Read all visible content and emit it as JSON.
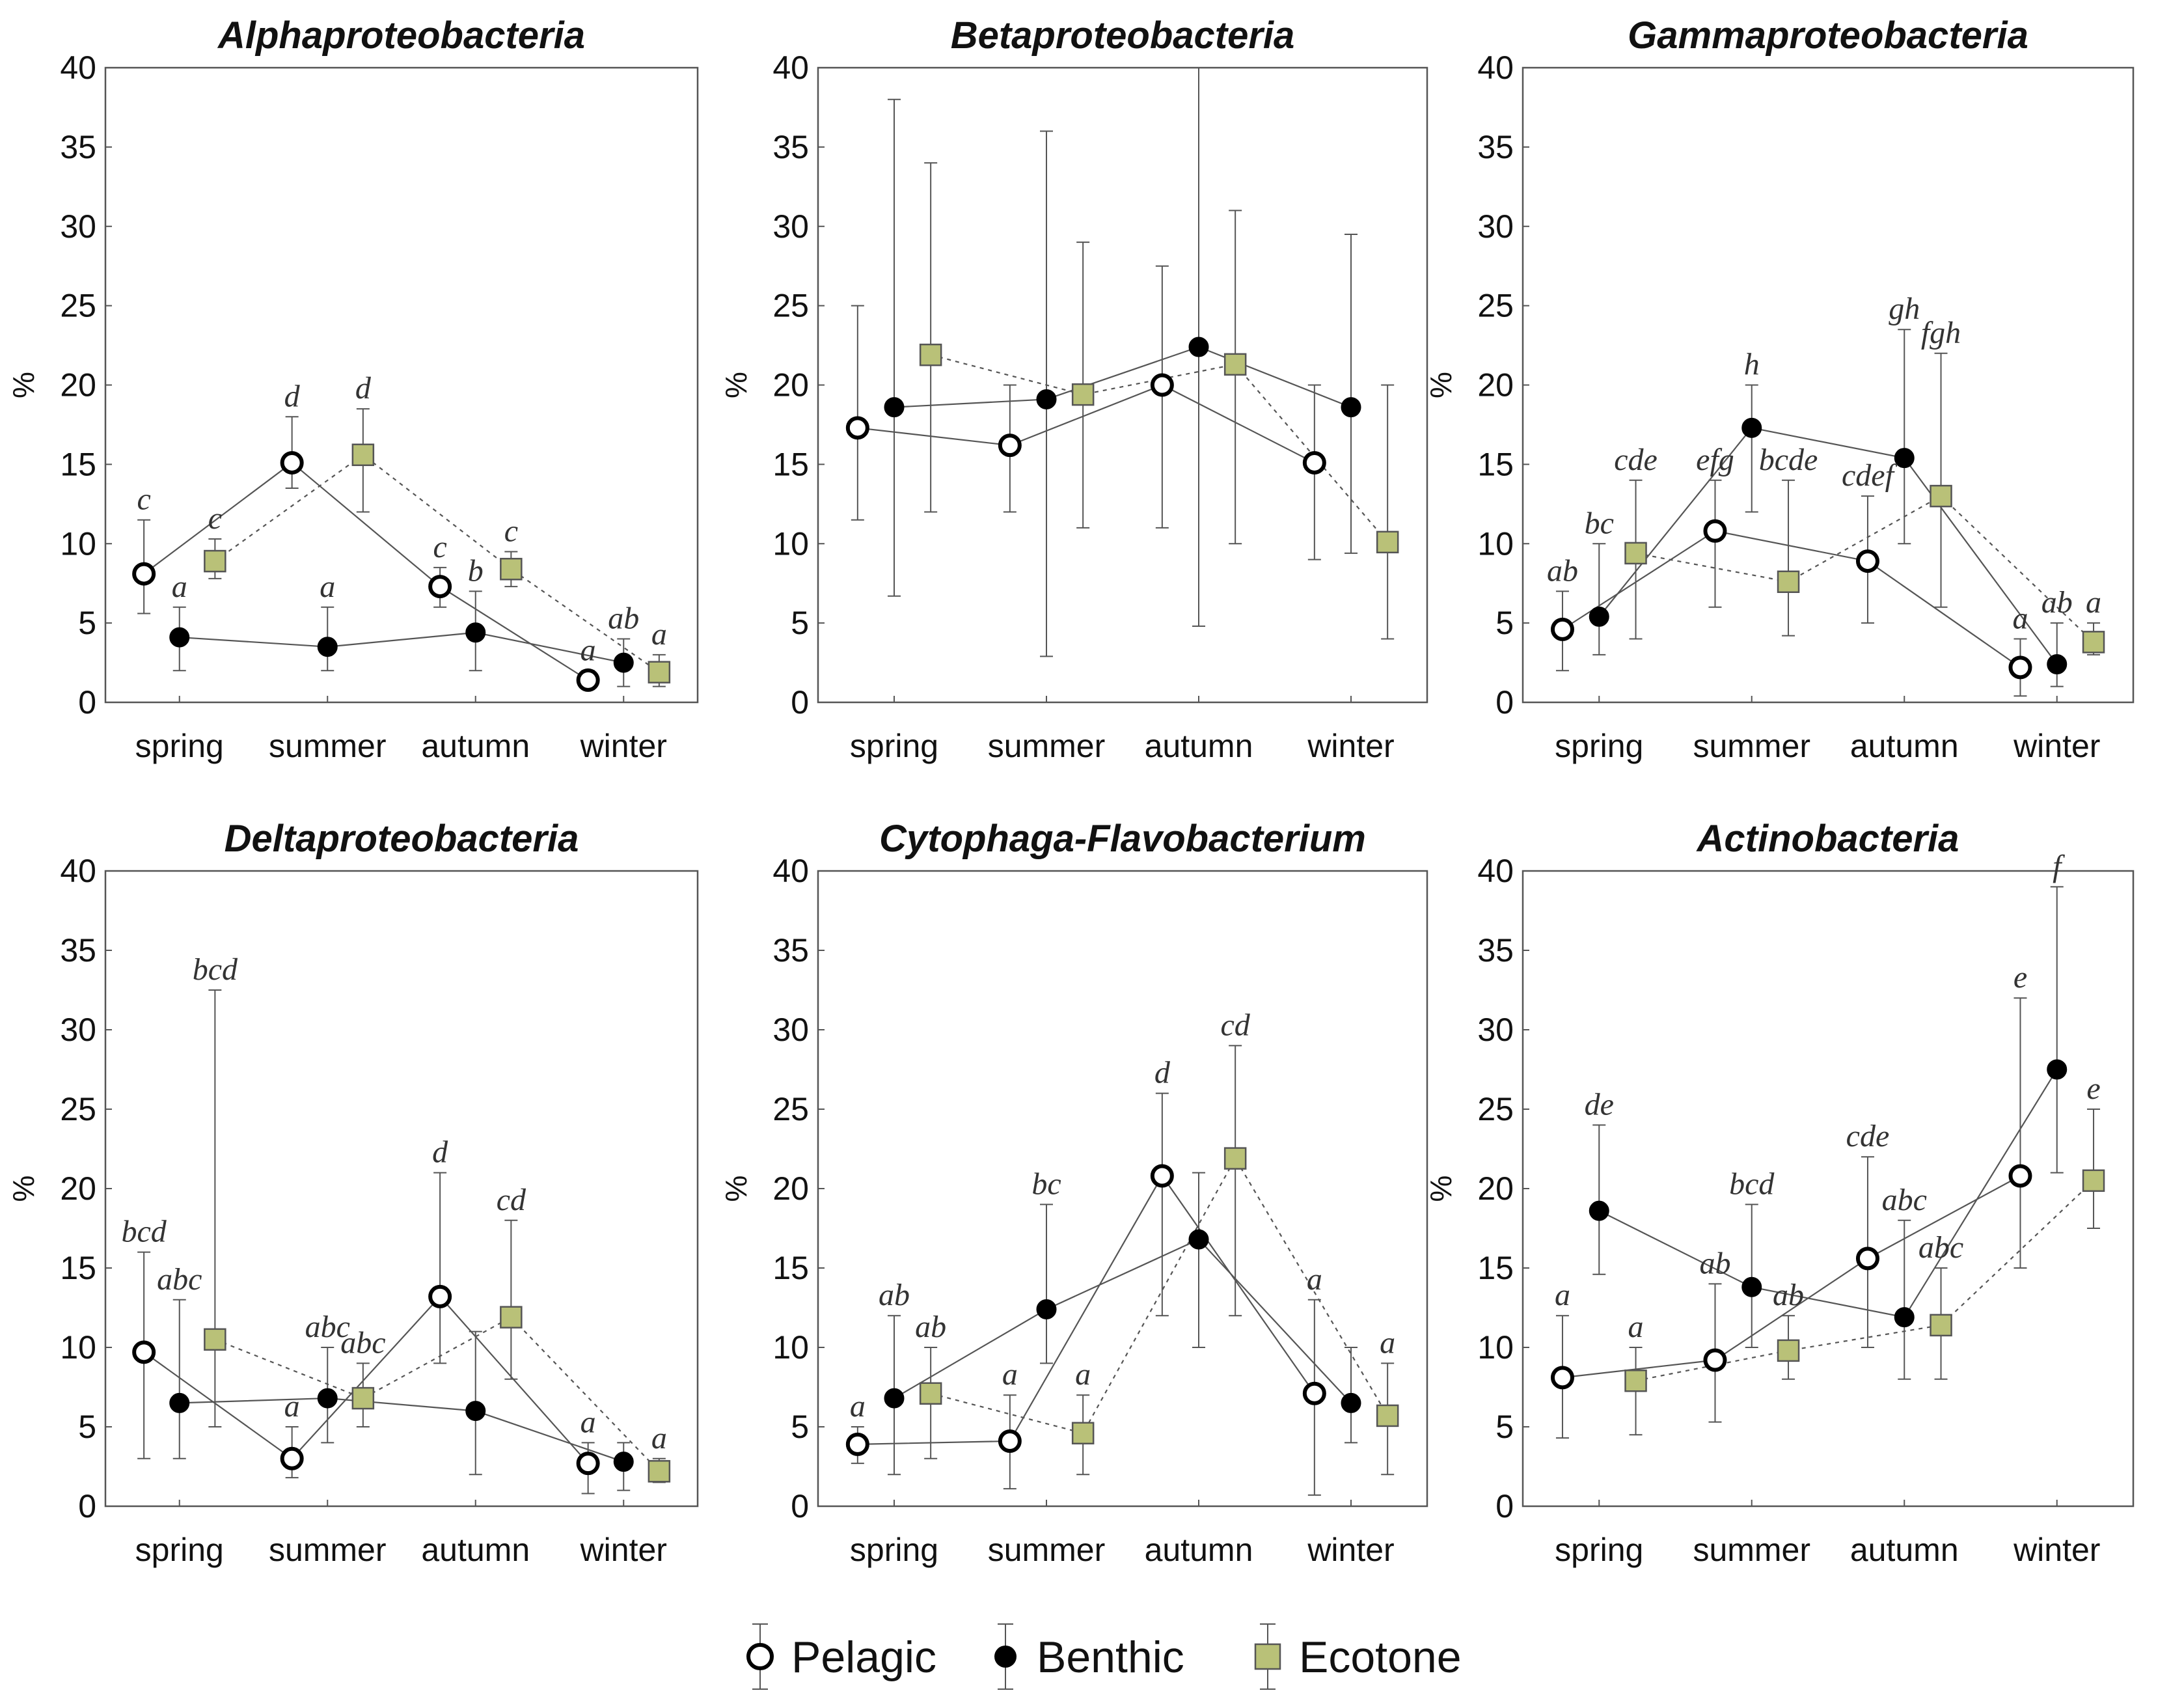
{
  "colors": {
    "pelagic_fill": "#ffffff",
    "benthic_fill": "#000000",
    "ecotone_fill": "#b9c178",
    "line": "#555555",
    "frame": "#555555"
  },
  "legend": [
    {
      "name": "Pelagic",
      "marker": "open-circle"
    },
    {
      "name": "Benthic",
      "marker": "filled-circle"
    },
    {
      "name": "Ecotone",
      "marker": "square"
    }
  ],
  "chart_data": [
    {
      "type": "line",
      "title": "Alphaproteobacteria",
      "ylabel": "%",
      "ylim": [
        0,
        40
      ],
      "yticks": [
        "0",
        "5",
        "10",
        "15",
        "20",
        "25",
        "30",
        "35",
        "40"
      ],
      "categories": [
        "spring",
        "summer",
        "autumn",
        "winter"
      ],
      "series": [
        {
          "name": "Pelagic",
          "values": [
            8.1,
            15.1,
            7.3,
            1.4
          ],
          "err_low": [
            5.6,
            13.5,
            6.0,
            1.0
          ],
          "err_high": [
            11.5,
            18.0,
            8.5,
            2.0
          ],
          "sig": [
            "c",
            "d",
            "c",
            "a"
          ]
        },
        {
          "name": "Benthic",
          "values": [
            4.1,
            3.5,
            4.4,
            2.5
          ],
          "err_low": [
            2.0,
            2.0,
            2.0,
            1.0
          ],
          "err_high": [
            6.0,
            6.0,
            7.0,
            4.0
          ],
          "sig": [
            "a",
            "a",
            "b",
            "ab"
          ]
        },
        {
          "name": "Ecotone",
          "values": [
            8.9,
            15.6,
            8.4,
            1.9
          ],
          "err_low": [
            7.8,
            12.0,
            7.3,
            1.0
          ],
          "err_high": [
            10.3,
            18.5,
            9.5,
            3.0
          ],
          "sig": [
            "c",
            "d",
            "c",
            "a"
          ]
        }
      ]
    },
    {
      "type": "line",
      "title": "Betaproteobacteria",
      "ylabel": "%",
      "ylim": [
        0,
        40
      ],
      "yticks": [
        "0",
        "5",
        "10",
        "15",
        "20",
        "25",
        "30",
        "35",
        "40"
      ],
      "categories": [
        "spring",
        "summer",
        "autumn",
        "winter"
      ],
      "series": [
        {
          "name": "Pelagic",
          "values": [
            17.3,
            16.2,
            20.0,
            15.1
          ],
          "err_low": [
            11.5,
            12.0,
            11.0,
            9.0
          ],
          "err_high": [
            25.0,
            20.0,
            27.5,
            20.0
          ],
          "sig": [
            "",
            "",
            "",
            ""
          ]
        },
        {
          "name": "Benthic",
          "values": [
            18.6,
            19.1,
            22.4,
            18.6
          ],
          "err_low": [
            6.7,
            2.9,
            4.8,
            9.4
          ],
          "err_high": [
            38.0,
            36.0,
            40.0,
            29.5
          ],
          "sig": [
            "",
            "",
            "",
            ""
          ]
        },
        {
          "name": "Ecotone",
          "values": [
            21.9,
            19.4,
            21.3,
            10.1
          ],
          "err_low": [
            12.0,
            11.0,
            10.0,
            4.0
          ],
          "err_high": [
            34.0,
            29.0,
            31.0,
            20.0
          ],
          "sig": [
            "",
            "",
            "",
            ""
          ]
        }
      ]
    },
    {
      "type": "line",
      "title": "Gammaproteobacteria",
      "ylabel": "%",
      "ylim": [
        0,
        40
      ],
      "yticks": [
        "0",
        "5",
        "10",
        "15",
        "20",
        "25",
        "30",
        "35",
        "40"
      ],
      "categories": [
        "spring",
        "summer",
        "autumn",
        "winter"
      ],
      "series": [
        {
          "name": "Pelagic",
          "values": [
            4.6,
            10.8,
            8.9,
            2.2
          ],
          "err_low": [
            2.0,
            6.0,
            5.0,
            0.4
          ],
          "err_high": [
            7.0,
            14.0,
            13.0,
            4.0
          ],
          "sig": [
            "ab",
            "efg",
            "cdef",
            "a"
          ]
        },
        {
          "name": "Benthic",
          "values": [
            5.4,
            17.3,
            15.4,
            2.4
          ],
          "err_low": [
            3.0,
            12.0,
            10.0,
            1.0
          ],
          "err_high": [
            10.0,
            20.0,
            23.5,
            5.0
          ],
          "sig": [
            "bc",
            "h",
            "gh",
            "ab"
          ]
        },
        {
          "name": "Ecotone",
          "values": [
            9.4,
            7.6,
            13.0,
            3.8
          ],
          "err_low": [
            4.0,
            4.2,
            6.0,
            3.0
          ],
          "err_high": [
            14.0,
            14.0,
            22.0,
            5.0
          ],
          "sig": [
            "cde",
            "bcde",
            "fgh",
            "a"
          ]
        }
      ]
    },
    {
      "type": "line",
      "title": "Deltaproteobacteria",
      "ylabel": "%",
      "ylim": [
        0,
        40
      ],
      "yticks": [
        "0",
        "5",
        "10",
        "15",
        "20",
        "25",
        "30",
        "35",
        "40"
      ],
      "categories": [
        "spring",
        "summer",
        "autumn",
        "winter"
      ],
      "series": [
        {
          "name": "Pelagic",
          "values": [
            9.7,
            3.0,
            13.2,
            2.7
          ],
          "err_low": [
            3.0,
            1.8,
            9.0,
            0.8
          ],
          "err_high": [
            16.0,
            5.0,
            21.0,
            4.0
          ],
          "sig": [
            "bcd",
            "a",
            "d",
            "a"
          ]
        },
        {
          "name": "Benthic",
          "values": [
            6.5,
            6.8,
            6.0,
            2.8
          ],
          "err_low": [
            3.0,
            4.0,
            2.0,
            1.0
          ],
          "err_high": [
            13.0,
            10.0,
            11.0,
            4.0
          ],
          "sig": [
            "abc",
            "abc",
            "",
            ""
          ]
        },
        {
          "name": "Ecotone",
          "values": [
            10.5,
            6.8,
            11.9,
            2.2
          ],
          "err_low": [
            5.0,
            5.0,
            8.0,
            1.5
          ],
          "err_high": [
            32.5,
            9.0,
            18.0,
            3.0
          ],
          "sig": [
            "bcd",
            "abc",
            "cd",
            "a"
          ]
        }
      ]
    },
    {
      "type": "line",
      "title": "Cytophaga-Flavobacterium",
      "ylabel": "%",
      "ylim": [
        0,
        40
      ],
      "yticks": [
        "0",
        "5",
        "10",
        "15",
        "20",
        "25",
        "30",
        "35",
        "40"
      ],
      "categories": [
        "spring",
        "summer",
        "autumn",
        "winter"
      ],
      "series": [
        {
          "name": "Pelagic",
          "values": [
            3.9,
            4.1,
            20.8,
            7.1
          ],
          "err_low": [
            2.7,
            1.1,
            12.0,
            0.7
          ],
          "err_high": [
            5.0,
            7.0,
            26.0,
            13.0
          ],
          "sig": [
            "a",
            "a",
            "d",
            "a"
          ]
        },
        {
          "name": "Benthic",
          "values": [
            6.8,
            12.4,
            16.8,
            6.5
          ],
          "err_low": [
            2.0,
            9.0,
            10.0,
            4.0
          ],
          "err_high": [
            12.0,
            19.0,
            21.0,
            10.0
          ],
          "sig": [
            "ab",
            "bc",
            "",
            ""
          ]
        },
        {
          "name": "Ecotone",
          "values": [
            7.1,
            4.6,
            21.9,
            5.7
          ],
          "err_low": [
            3.0,
            2.0,
            12.0,
            2.0
          ],
          "err_high": [
            10.0,
            7.0,
            29.0,
            9.0
          ],
          "sig": [
            "ab",
            "a",
            "cd",
            "a"
          ]
        }
      ]
    },
    {
      "type": "line",
      "title": "Actinobacteria",
      "ylabel": "%",
      "ylim": [
        0,
        40
      ],
      "yticks": [
        "0",
        "5",
        "10",
        "15",
        "20",
        "25",
        "30",
        "35",
        "40"
      ],
      "categories": [
        "spring",
        "summer",
        "autumn",
        "winter"
      ],
      "series": [
        {
          "name": "Pelagic",
          "values": [
            8.1,
            9.2,
            15.6,
            20.8
          ],
          "err_low": [
            4.3,
            5.3,
            10.0,
            15.0
          ],
          "err_high": [
            12.0,
            14.0,
            22.0,
            32.0
          ],
          "sig": [
            "a",
            "",
            "cde",
            "e"
          ]
        },
        {
          "name": "Benthic",
          "values": [
            18.6,
            13.8,
            11.9,
            27.5
          ],
          "err_low": [
            14.6,
            10.0,
            8.0,
            21.0
          ],
          "err_high": [
            24.0,
            19.0,
            18.0,
            39.0
          ],
          "sig": [
            "de",
            "bcd",
            "abc",
            "f"
          ]
        },
        {
          "name": "Ecotone",
          "values": [
            7.9,
            9.8,
            11.4,
            20.5
          ],
          "err_low": [
            4.5,
            8.0,
            8.0,
            17.5
          ],
          "err_high": [
            10.0,
            12.0,
            15.0,
            25.0
          ],
          "sig": [
            "a",
            "ab",
            "abc",
            "e"
          ]
        }
      ],
      "extra_labels": [
        {
          "text": "ab",
          "series": "Pelagic",
          "index": 1
        }
      ]
    }
  ]
}
